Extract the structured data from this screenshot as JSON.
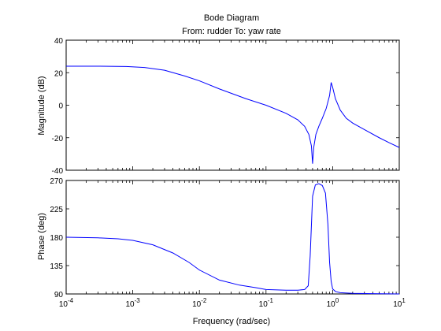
{
  "chart_data": {
    "type": "line",
    "title": "Bode Diagram",
    "subtitle": "From: rudder  To: yaw rate",
    "xlabel": "Frequency  (rad/sec)",
    "x_scale": "log",
    "xlim": [
      0.0001,
      10
    ],
    "x_tick_labels": [
      {
        "base": "10",
        "exp": "-4"
      },
      {
        "base": "10",
        "exp": "-3"
      },
      {
        "base": "10",
        "exp": "-2"
      },
      {
        "base": "10",
        "exp": "-1"
      },
      {
        "base": "10",
        "exp": "0"
      },
      {
        "base": "10",
        "exp": "1"
      }
    ],
    "magnitude": {
      "ylabel": "Magnitude (dB)",
      "ylim": [
        -40,
        40
      ],
      "yticks": [
        40,
        20,
        0,
        -20,
        -40
      ],
      "series": [
        {
          "x": [
            0.0001,
            0.0003,
            0.0008,
            0.0015,
            0.003,
            0.006,
            0.01,
            0.02,
            0.05,
            0.1,
            0.2,
            0.3,
            0.38,
            0.44,
            0.48,
            0.5,
            0.52,
            0.56,
            0.62,
            0.7,
            0.8,
            0.9,
            0.95,
            1.0,
            1.1,
            1.3,
            1.6,
            2,
            3,
            5,
            7,
            10
          ],
          "y": [
            24,
            24,
            23.8,
            23.2,
            21.5,
            18,
            15,
            10,
            4,
            0,
            -5,
            -9,
            -13,
            -18,
            -25,
            -36,
            -26,
            -18,
            -13,
            -8,
            -2,
            6,
            14,
            11,
            4,
            -3,
            -8,
            -11,
            -15,
            -20,
            -23,
            -26
          ]
        }
      ]
    },
    "phase": {
      "ylabel": "Phase (deg)",
      "ylim": [
        90,
        270
      ],
      "yticks": [
        270,
        225,
        180,
        135,
        90
      ],
      "series": [
        {
          "x": [
            0.0001,
            0.0003,
            0.0006,
            0.001,
            0.002,
            0.004,
            0.007,
            0.01,
            0.02,
            0.04,
            0.07,
            0.1,
            0.2,
            0.3,
            0.38,
            0.43,
            0.46,
            0.5,
            0.55,
            0.62,
            0.7,
            0.78,
            0.85,
            0.9,
            0.95,
            1.0,
            1.1,
            1.3,
            2,
            4,
            10
          ],
          "y": [
            180,
            179,
            177.5,
            175,
            168,
            155,
            140,
            128,
            112,
            104,
            100,
            97,
            96,
            96,
            97,
            103,
            150,
            245,
            263,
            265,
            262,
            250,
            200,
            140,
            110,
            98,
            94,
            92,
            91,
            90.5,
            90
          ]
        }
      ]
    },
    "grid": false
  }
}
